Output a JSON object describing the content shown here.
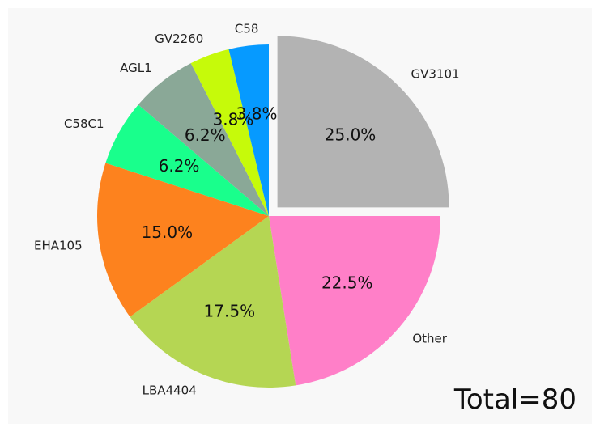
{
  "chart_data": {
    "type": "pie",
    "start_angle_deg": 90,
    "direction": "clockwise",
    "slices": [
      {
        "label": "GV3101",
        "value": 20,
        "percent_label": "25.0%",
        "color": "#b3b3b3",
        "exploded": true
      },
      {
        "label": "Other",
        "value": 18,
        "percent_label": "22.5%",
        "color": "#ff7fc8",
        "exploded": false
      },
      {
        "label": "LBA4404",
        "value": 14,
        "percent_label": "17.5%",
        "color": "#b5d653",
        "exploded": false
      },
      {
        "label": "EHA105",
        "value": 12,
        "percent_label": "15.0%",
        "color": "#fd821e",
        "exploded": false
      },
      {
        "label": "C58C1",
        "value": 5,
        "percent_label": "6.2%",
        "color": "#19ff8c",
        "exploded": false
      },
      {
        "label": "AGL1",
        "value": 5,
        "percent_label": "6.2%",
        "color": "#8aa897",
        "exploded": false
      },
      {
        "label": "GV2260",
        "value": 3,
        "percent_label": "3.8%",
        "color": "#c6fa0a",
        "exploded": false
      },
      {
        "label": "C58",
        "value": 3,
        "percent_label": "3.8%",
        "color": "#069aff",
        "exploded": false
      }
    ],
    "annotation": "Total=80",
    "background": "#f8f8f8"
  }
}
